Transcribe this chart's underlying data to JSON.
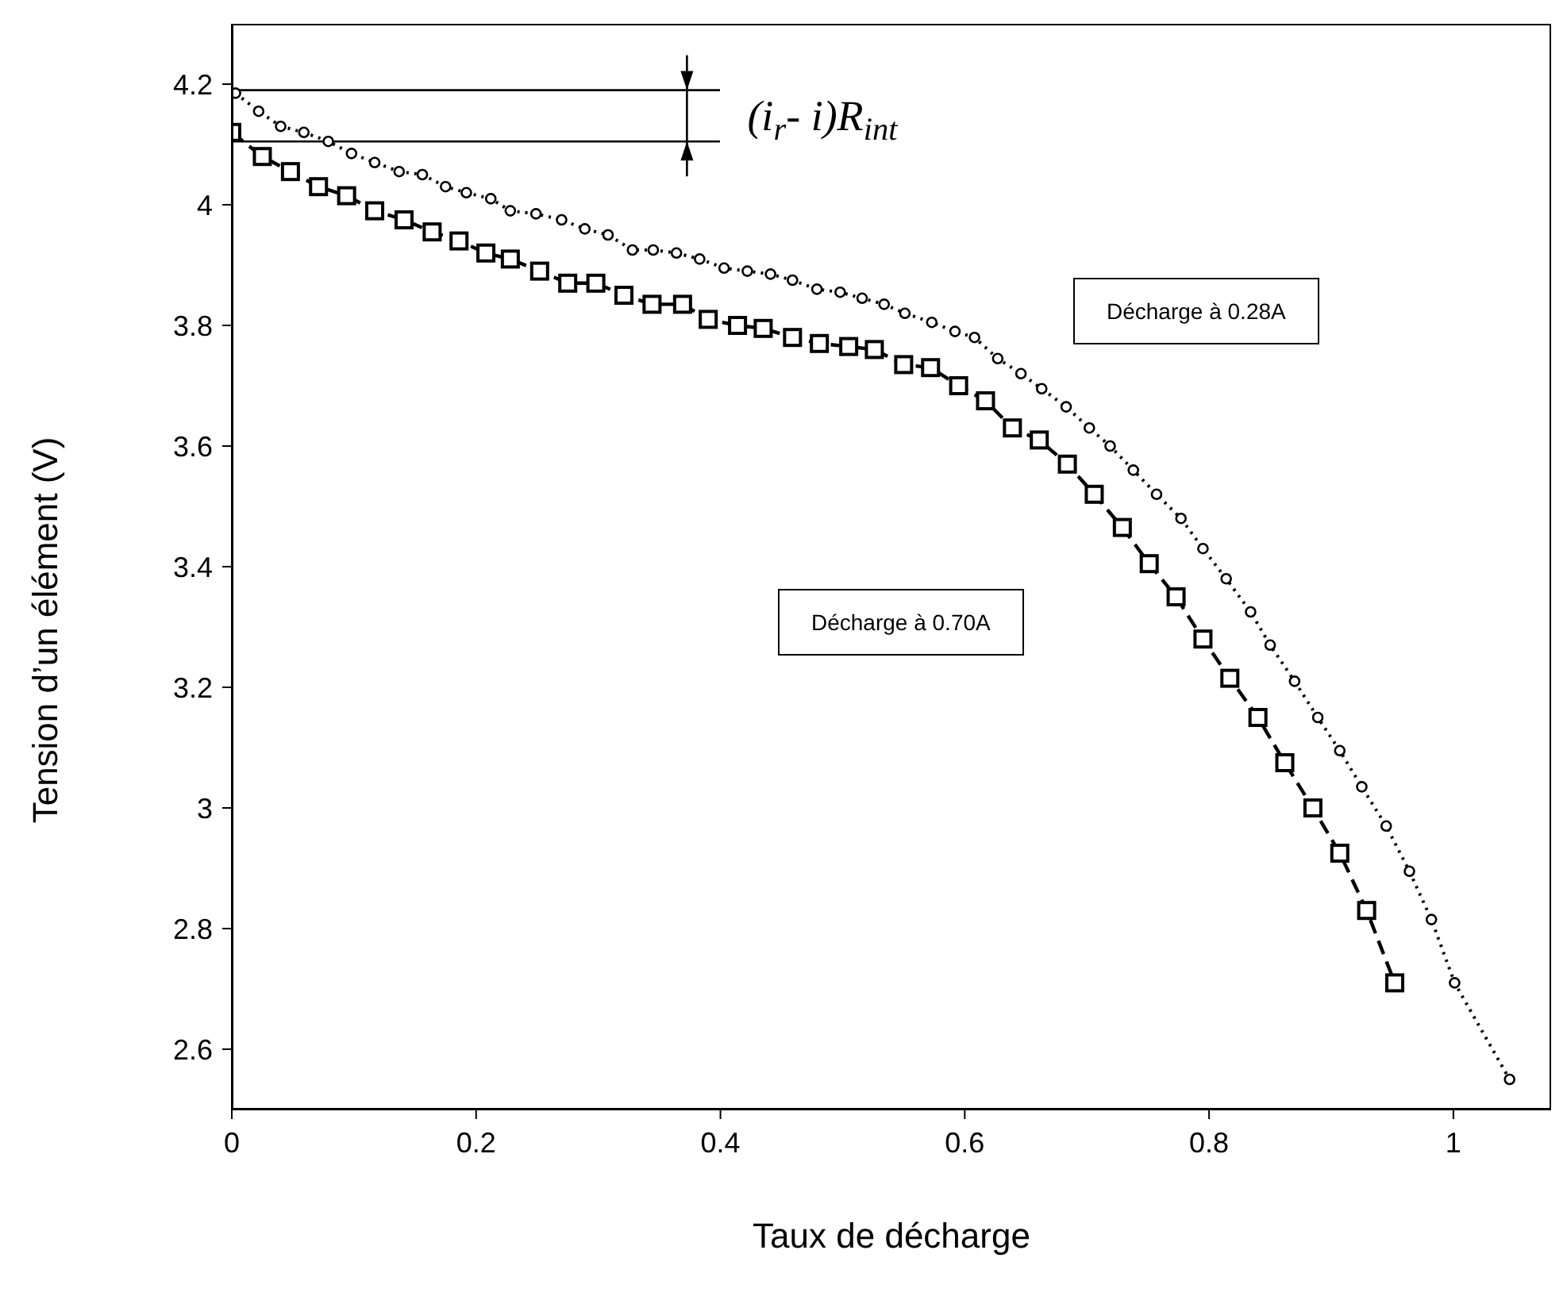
{
  "chart_data": {
    "type": "line",
    "xlabel": "Taux de décharge",
    "ylabel": "Tension d’un élément (V)",
    "xlim": [
      0,
      1.08
    ],
    "xticks": [
      0,
      {
        "value": 0.2,
        "label": "0.2"
      },
      {
        "value": 0.4,
        "label": "0.4"
      },
      {
        "value": 0.6,
        "label": "0.6"
      },
      {
        "value": 0.8,
        "label": "0.8"
      },
      1
    ],
    "ylim": [
      2.5,
      4.3
    ],
    "yticks": [
      {
        "value": 2.6,
        "label": "2.6"
      },
      {
        "value": 2.8,
        "label": "2.8"
      },
      3,
      {
        "value": 3.2,
        "label": "3.2"
      },
      {
        "value": 3.4,
        "label": "3.4"
      },
      {
        "value": 3.6,
        "label": "3.6"
      },
      {
        "value": 3.8,
        "label": "3.8"
      },
      4,
      {
        "value": 4.2,
        "label": "4.2"
      }
    ],
    "series": [
      {
        "name": "Décharge à 0.70A",
        "color": "#000000",
        "marker": "square",
        "line_style": "dashed",
        "x": [
          0,
          0.025,
          0.048,
          0.071,
          0.094,
          0.117,
          0.141,
          0.164,
          0.186,
          0.208,
          0.228,
          0.252,
          0.275,
          0.298,
          0.321,
          0.344,
          0.369,
          0.39,
          0.414,
          0.435,
          0.459,
          0.481,
          0.505,
          0.526,
          0.55,
          0.572,
          0.595,
          0.617,
          0.639,
          0.661,
          0.684,
          0.706,
          0.729,
          0.751,
          0.773,
          0.795,
          0.817,
          0.84,
          0.862,
          0.885,
          0.907,
          0.929,
          0.952
        ],
        "values": [
          4.12,
          4.08,
          4.055,
          4.03,
          4.015,
          3.99,
          3.975,
          3.955,
          3.94,
          3.92,
          3.91,
          3.89,
          3.87,
          3.87,
          3.85,
          3.835,
          3.835,
          3.81,
          3.8,
          3.795,
          3.78,
          3.77,
          3.765,
          3.76,
          3.735,
          3.73,
          3.7,
          3.675,
          3.63,
          3.61,
          3.57,
          3.52,
          3.465,
          3.405,
          3.35,
          3.28,
          3.215,
          3.15,
          3.075,
          3.0,
          2.925,
          2.83,
          2.71
        ]
      },
      {
        "name": "Décharge à 0.28A",
        "color": "#000000",
        "marker": "circle",
        "line_style": "dotted",
        "x": [
          0.003,
          0.022,
          0.04,
          0.059,
          0.079,
          0.098,
          0.117,
          0.137,
          0.156,
          0.175,
          0.192,
          0.212,
          0.228,
          0.249,
          0.27,
          0.289,
          0.308,
          0.328,
          0.345,
          0.364,
          0.383,
          0.403,
          0.422,
          0.441,
          0.459,
          0.479,
          0.498,
          0.516,
          0.534,
          0.551,
          0.573,
          0.592,
          0.608,
          0.627,
          0.646,
          0.663,
          0.683,
          0.702,
          0.719,
          0.738,
          0.757,
          0.777,
          0.795,
          0.814,
          0.834,
          0.85,
          0.87,
          0.889,
          0.907,
          0.925,
          0.945,
          0.964,
          0.982,
          1.001,
          1.046
        ],
        "values": [
          4.185,
          4.155,
          4.13,
          4.12,
          4.105,
          4.085,
          4.07,
          4.055,
          4.05,
          4.03,
          4.02,
          4.01,
          3.99,
          3.985,
          3.975,
          3.96,
          3.95,
          3.925,
          3.925,
          3.92,
          3.91,
          3.895,
          3.89,
          3.885,
          3.875,
          3.86,
          3.855,
          3.845,
          3.835,
          3.82,
          3.805,
          3.79,
          3.78,
          3.745,
          3.72,
          3.695,
          3.665,
          3.63,
          3.6,
          3.56,
          3.52,
          3.48,
          3.43,
          3.38,
          3.325,
          3.27,
          3.21,
          3.15,
          3.095,
          3.035,
          2.97,
          2.895,
          2.815,
          2.71,
          2.55
        ]
      }
    ],
    "ref_lines": [
      {
        "axis": "y",
        "value": 4.19,
        "color": "#000000"
      },
      {
        "axis": "y",
        "value": 4.105,
        "color": "#000000"
      }
    ],
    "annotations": [
      "(i$_{r}$- i)R$_{int}$"
    ]
  }
}
